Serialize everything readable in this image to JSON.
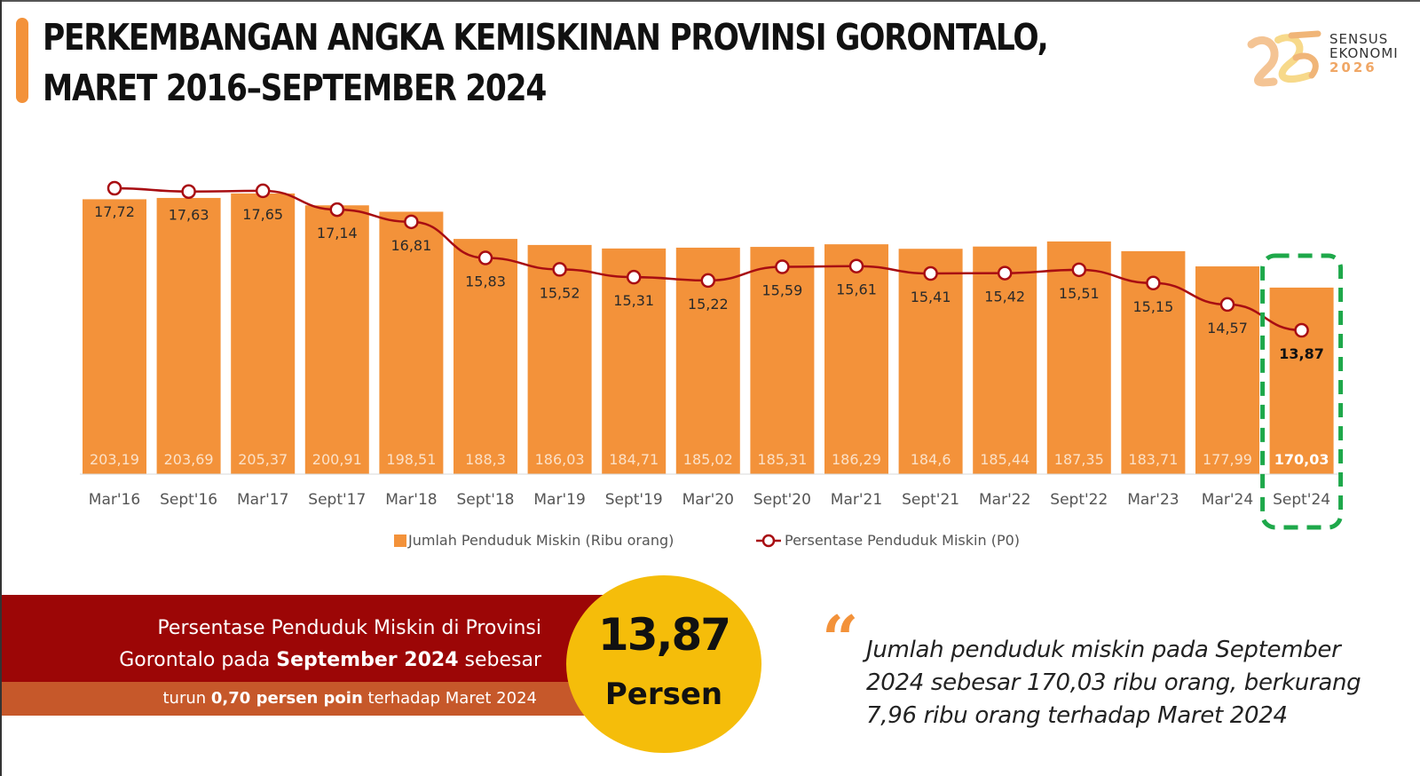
{
  "header": {
    "title_line1": "PERKEMBANGAN ANGKA KEMISKINAN PROVINSI GORONTALO,",
    "title_line2": "MARET 2016–SEPTEMBER 2024"
  },
  "logo": {
    "line1": "SENSUS",
    "line2": "EKONOMI",
    "line3": "2026",
    "icon": "ribbon-logo-icon"
  },
  "colors": {
    "bar": "#f3923a",
    "line": "#a80d12",
    "highlight_box": "#1ea84a",
    "banner_dark": "#9c0606",
    "banner_light": "#c6582a",
    "circle": "#f5bd0a"
  },
  "chart_data": {
    "type": "bar+line",
    "title": "Perkembangan Angka Kemiskinan Provinsi Gorontalo, Maret 2016–September 2024",
    "categories": [
      "Mar'16",
      "Sept'16",
      "Mar'17",
      "Sept'17",
      "Mar'18",
      "Sept'18",
      "Mar'19",
      "Sept'19",
      "Mar'20",
      "Sept'20",
      "Mar'21",
      "Sept'21",
      "Mar'22",
      "Sept'22",
      "Mar'23",
      "Mar'24",
      "Sept'24"
    ],
    "series": [
      {
        "name": "Jumlah Penduduk Miskin (Ribu orang)",
        "type": "bar",
        "values": [
          203.19,
          203.69,
          205.37,
          200.91,
          198.51,
          188.3,
          186.03,
          184.71,
          185.02,
          185.31,
          186.29,
          184.6,
          185.44,
          187.35,
          183.71,
          177.99,
          170.03
        ],
        "labels": [
          "203,19",
          "203,69",
          "205,37",
          "200,91",
          "198,51",
          "188,3",
          "186,03",
          "184,71",
          "185,02",
          "185,31",
          "186,29",
          "184,6",
          "185,44",
          "187,35",
          "183,71",
          "177,99",
          "170,03"
        ],
        "ylim": [
          100,
          215
        ]
      },
      {
        "name": "Persentase Penduduk Miskin (P0)",
        "type": "line",
        "values": [
          17.72,
          17.63,
          17.65,
          17.14,
          16.81,
          15.83,
          15.52,
          15.31,
          15.22,
          15.59,
          15.61,
          15.41,
          15.42,
          15.51,
          15.15,
          14.57,
          13.87
        ],
        "labels": [
          "17,72",
          "17,63",
          "17,65",
          "17,14",
          "16,81",
          "15,83",
          "15,52",
          "15,31",
          "15,22",
          "15,59",
          "15,61",
          "15,41",
          "15,42",
          "15,51",
          "15,15",
          "14,57",
          "13,87"
        ],
        "ylim": [
          13,
          18
        ]
      }
    ],
    "highlight_category": "Sept'24",
    "legend": [
      "Jumlah Penduduk Miskin (Ribu orang)",
      "Persentase Penduduk Miskin (P0)"
    ],
    "legend_position": "bottom",
    "grid": false
  },
  "summary": {
    "line1": "Persentase Penduduk Miskin di Provinsi",
    "line2_pre": "Gorontalo pada ",
    "line2_bold": "September 2024",
    "line2_post": " sebesar",
    "sub_pre": "turun ",
    "sub_bold": "0,70 persen poin",
    "sub_post": " terhadap Maret 2024",
    "value": "13,87",
    "unit": "Persen"
  },
  "quote": {
    "mark": "“",
    "text": "Jumlah penduduk miskin pada September 2024 sebesar 170,03 ribu orang, berkurang 7,96 ribu orang terhadap Maret 2024"
  }
}
